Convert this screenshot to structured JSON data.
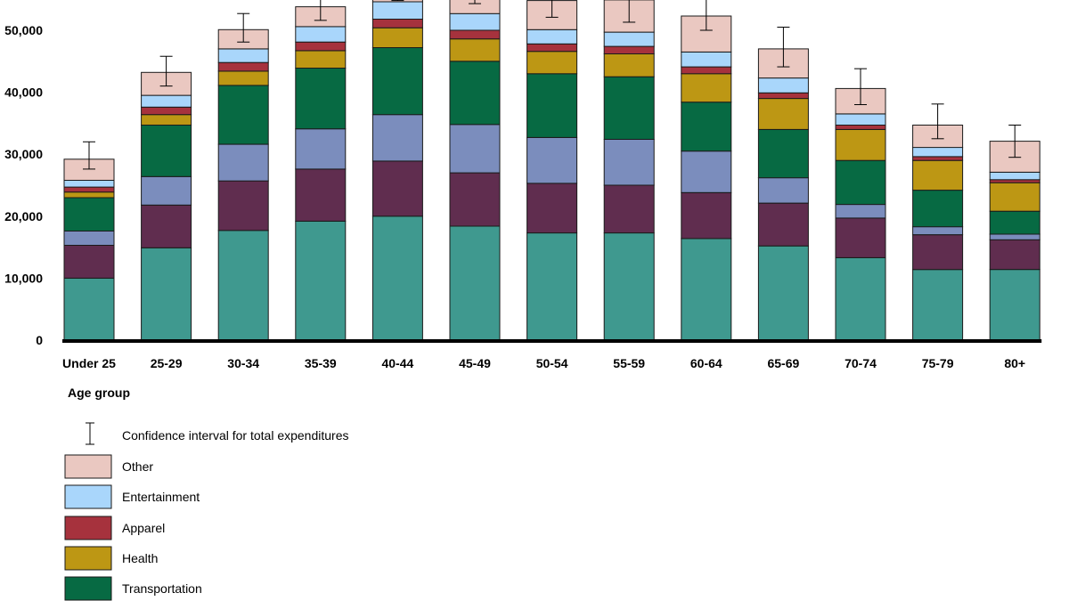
{
  "chart_data": {
    "type": "bar",
    "stacked": true,
    "xlabel": "Age group",
    "ylabel": "",
    "ylim": [
      0,
      56000
    ],
    "yticks": [
      0,
      10000,
      20000,
      30000,
      40000,
      50000
    ],
    "ytick_labels": [
      "0",
      "10,000",
      "20,000",
      "30,000",
      "40,000",
      "50,000"
    ],
    "grid": false,
    "legend_position": "bottom-left",
    "categories": [
      "Under 25",
      "25-29",
      "30-34",
      "35-39",
      "40-44",
      "45-49",
      "50-54",
      "55-59",
      "60-64",
      "65-69",
      "70-74",
      "75-79",
      "80+"
    ],
    "series": [
      {
        "key": "seg1",
        "color": "#3f998f",
        "values": [
          10000,
          14900,
          17700,
          19200,
          20000,
          18400,
          17300,
          17300,
          16400,
          15200,
          13300,
          11400,
          11400
        ]
      },
      {
        "key": "seg2",
        "color": "#602d4f",
        "values": [
          5300,
          6900,
          8000,
          8400,
          8900,
          8600,
          8000,
          7700,
          7400,
          6900,
          6400,
          5600,
          4800
        ]
      },
      {
        "key": "seg3",
        "color": "#7b8dbd",
        "values": [
          2300,
          4600,
          5900,
          6500,
          7500,
          7800,
          7400,
          7400,
          6700,
          4100,
          2200,
          1300,
          900
        ]
      },
      {
        "key": "seg4",
        "color": "#076a43",
        "values": [
          5400,
          8300,
          9500,
          9800,
          10800,
          10200,
          10300,
          10100,
          7900,
          7800,
          7100,
          5900,
          3700
        ]
      },
      {
        "key": "seg5",
        "color": "#bd9714",
        "values": [
          900,
          1700,
          2300,
          2800,
          3200,
          3600,
          3600,
          3700,
          4600,
          5000,
          5000,
          4800,
          4600
        ]
      },
      {
        "key": "seg6",
        "color": "#a6323d",
        "values": [
          800,
          1200,
          1400,
          1400,
          1400,
          1400,
          1200,
          1200,
          1100,
          900,
          700,
          600,
          500
        ]
      },
      {
        "key": "seg7",
        "color": "#a9d6fb",
        "values": [
          1100,
          1900,
          2200,
          2500,
          2800,
          2700,
          2300,
          2300,
          2400,
          2400,
          1800,
          1500,
          1200
        ]
      },
      {
        "key": "seg8",
        "color": "#eac8c1",
        "values": [
          3400,
          3700,
          3100,
          3200,
          3400,
          3600,
          4700,
          5200,
          5800,
          4700,
          4100,
          3600,
          5000
        ]
      }
    ],
    "error_bars": {
      "center": [
        29800,
        43400,
        50400,
        54100,
        57600,
        57000,
        54800,
        53900,
        52600,
        47300,
        40900,
        35300,
        32100
      ],
      "half_width": [
        2200,
        2400,
        2300,
        2500,
        2800,
        2700,
        2700,
        2600,
        2600,
        3200,
        2900,
        2800,
        2600
      ]
    }
  },
  "legend": {
    "items": [
      {
        "type": "errorbar",
        "label": "Confidence interval for total expenditures"
      },
      {
        "type": "swatch",
        "color": "#eac8c1",
        "label": "Other"
      },
      {
        "type": "swatch",
        "color": "#a9d6fb",
        "label": "Entertainment"
      },
      {
        "type": "swatch",
        "color": "#a6323d",
        "label": "Apparel"
      },
      {
        "type": "swatch",
        "color": "#bd9714",
        "label": "Health"
      },
      {
        "type": "swatch",
        "color": "#076a43",
        "label": "Transportation"
      }
    ]
  }
}
